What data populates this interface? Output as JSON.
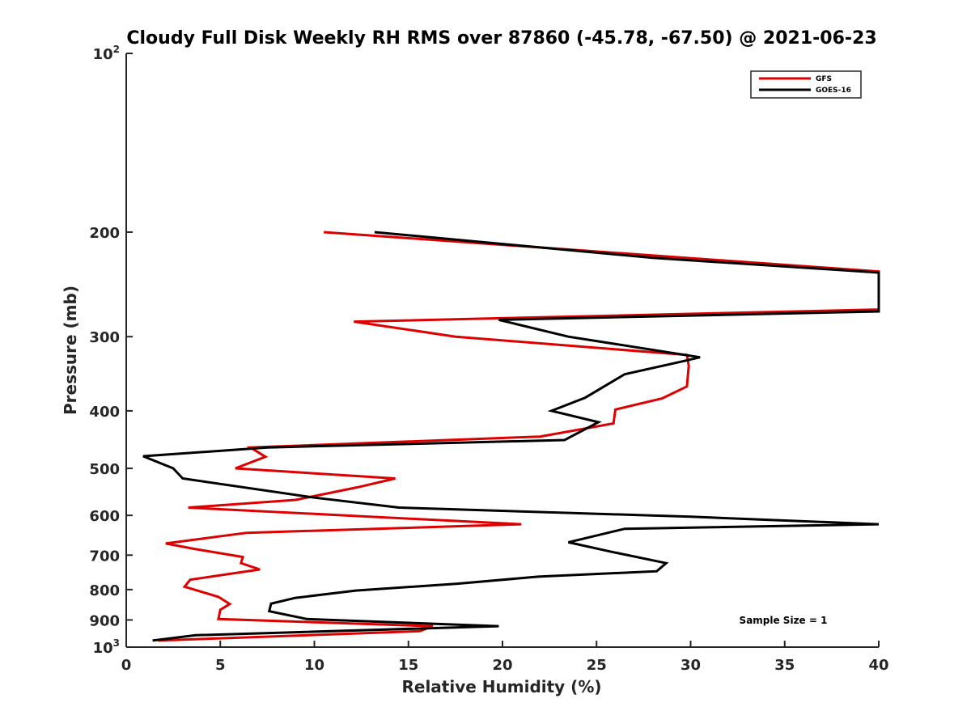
{
  "chart_data": {
    "type": "line",
    "title": "Cloudy Full Disk Weekly RH RMS over 87860 (-45.78, -67.50) @ 2021-06-23",
    "xlabel": "Relative Humidity (%)",
    "ylabel": "Pressure (mb)",
    "xlim": [
      0,
      40
    ],
    "ylim": [
      100,
      1000
    ],
    "y_scale": "log",
    "y_reversed": true,
    "grid": false,
    "legend_position": "top-right",
    "x_ticks": [
      "0",
      "5",
      "10",
      "15",
      "20",
      "25",
      "30",
      "35",
      "40"
    ],
    "y_ticks": [
      {
        "value": 100,
        "base": "10",
        "exp": "2"
      },
      {
        "value": 200,
        "label": "200"
      },
      {
        "value": 300,
        "label": "300"
      },
      {
        "value": 400,
        "label": "400"
      },
      {
        "value": 500,
        "label": "500"
      },
      {
        "value": 600,
        "label": "600"
      },
      {
        "value": 700,
        "label": "700"
      },
      {
        "value": 800,
        "label": "800"
      },
      {
        "value": 900,
        "label": "900"
      },
      {
        "value": 1000,
        "base": "10",
        "exp": "3"
      }
    ],
    "series": [
      {
        "name": "GFS",
        "color": "#dd0000",
        "points": [
          [
            10.5,
            200
          ],
          [
            40.0,
            233
          ],
          [
            40.0,
            270
          ],
          [
            12.1,
            283
          ],
          [
            17.5,
            300
          ],
          [
            29.8,
            322
          ],
          [
            29.9,
            336
          ],
          [
            29.8,
            364
          ],
          [
            28.5,
            381
          ],
          [
            26.0,
            398
          ],
          [
            25.9,
            420
          ],
          [
            22.0,
            442
          ],
          [
            6.6,
            461
          ],
          [
            7.4,
            478
          ],
          [
            5.8,
            500
          ],
          [
            14.3,
            520
          ],
          [
            12.3,
            538
          ],
          [
            9.0,
            565
          ],
          [
            3.3,
            582
          ],
          [
            21.0,
            621
          ],
          [
            6.4,
            642
          ],
          [
            2.1,
            669
          ],
          [
            3.6,
            683
          ],
          [
            6.2,
            705
          ],
          [
            6.1,
            722
          ],
          [
            7.1,
            740
          ],
          [
            3.4,
            770
          ],
          [
            3.1,
            791
          ],
          [
            4.9,
            823
          ],
          [
            5.5,
            846
          ],
          [
            5.0,
            865
          ],
          [
            4.9,
            897
          ],
          [
            16.3,
            922
          ],
          [
            15.6,
            940
          ],
          [
            1.7,
            975
          ]
        ]
      },
      {
        "name": "GOES-16",
        "color": "#000000",
        "points": [
          [
            13.2,
            200
          ],
          [
            28.0,
            221
          ],
          [
            40.0,
            234
          ],
          [
            40.0,
            272
          ],
          [
            19.8,
            281
          ],
          [
            23.5,
            300
          ],
          [
            30.5,
            325
          ],
          [
            29.6,
            330
          ],
          [
            26.5,
            347
          ],
          [
            24.4,
            380
          ],
          [
            22.6,
            400
          ],
          [
            25.1,
            418
          ],
          [
            23.3,
            448
          ],
          [
            7.5,
            461
          ],
          [
            0.9,
            477
          ],
          [
            2.5,
            500
          ],
          [
            3.0,
            520
          ],
          [
            10.0,
            560
          ],
          [
            14.5,
            582
          ],
          [
            30.0,
            603
          ],
          [
            40.0,
            621
          ],
          [
            26.5,
            632
          ],
          [
            23.5,
            666
          ],
          [
            25.7,
            690
          ],
          [
            28.7,
            722
          ],
          [
            28.2,
            745
          ],
          [
            21.9,
            761
          ],
          [
            17.6,
            782
          ],
          [
            12.2,
            803
          ],
          [
            9.0,
            826
          ],
          [
            7.7,
            845
          ],
          [
            7.6,
            870
          ],
          [
            9.6,
            897
          ],
          [
            19.8,
            922
          ],
          [
            3.7,
            955
          ],
          [
            1.4,
            975
          ]
        ]
      }
    ],
    "annotations": [
      "Sample Size = 1"
    ]
  }
}
